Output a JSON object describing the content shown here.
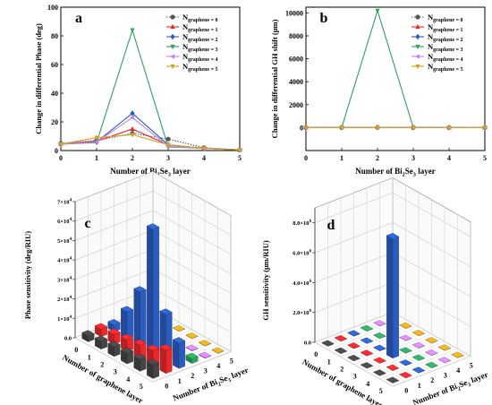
{
  "panel_letters": [
    "a",
    "b",
    "c",
    "d"
  ],
  "legend_entries": [
    "N",
    "N",
    "N",
    "N",
    "N",
    "N"
  ],
  "chart_data": [
    {
      "panel": "a",
      "type": "line",
      "xlabel_parts": [
        "Number of Bi",
        "2",
        "Se",
        "3",
        " layer"
      ],
      "ylabel": "Change in differential Phase (deg)",
      "xlim": [
        0,
        5
      ],
      "ylim": [
        0,
        100
      ],
      "xticks": [
        0,
        1,
        2,
        3,
        4,
        5
      ],
      "yticks": [
        0,
        20,
        40,
        60,
        80,
        100
      ],
      "legend": "top-right",
      "x": [
        0,
        1,
        2,
        3,
        4,
        5
      ],
      "series": [
        {
          "name": "graphene = 0",
          "color": "#555555",
          "marker": "circle",
          "dash": "dot",
          "values": [
            5,
            7,
            12,
            8,
            2,
            0.5
          ]
        },
        {
          "name": "graphene = 1",
          "color": "#e8272b",
          "marker": "triangle",
          "dash": "solid",
          "values": [
            4.5,
            6.5,
            15,
            4,
            1.5,
            0.5
          ]
        },
        {
          "name": "graphene = 2",
          "color": "#2a5cbf",
          "marker": "diamond",
          "dash": "solid",
          "values": [
            4.5,
            6,
            26,
            4,
            1.5,
            0.5
          ]
        },
        {
          "name": "graphene = 3",
          "color": "#2ca25f",
          "marker": "triangle-down",
          "dash": "solid",
          "values": [
            4.5,
            5.5,
            84,
            2.5,
            1.5,
            0.5
          ]
        },
        {
          "name": "graphene = 4",
          "color": "#c77ff0",
          "marker": "triangle-left",
          "dash": "solid",
          "values": [
            4.5,
            6,
            23,
            3,
            1.5,
            0.5
          ]
        },
        {
          "name": "graphene = 5",
          "color": "#d6a21c",
          "marker": "triangle-down",
          "dash": "solid",
          "values": [
            4.5,
            9,
            11,
            4,
            1.5,
            0.5
          ]
        }
      ]
    },
    {
      "panel": "b",
      "type": "line",
      "xlabel_parts": [
        "Number of Bi",
        "2",
        "Se",
        "3",
        " layer"
      ],
      "ylabel": "Change in differential GH shift (μm)",
      "xlim": [
        0,
        5
      ],
      "ylim": [
        -2000,
        10500
      ],
      "xticks": [
        0,
        1,
        2,
        3,
        4,
        5
      ],
      "yticks": [
        0,
        2000,
        4000,
        6000,
        8000,
        10000
      ],
      "legend": "top-right",
      "x": [
        0,
        1,
        2,
        3,
        4,
        5
      ],
      "series": [
        {
          "name": "graphene = 0",
          "color": "#555555",
          "marker": "circle",
          "dash": "dot",
          "values": [
            0,
            10,
            20,
            10,
            5,
            0
          ]
        },
        {
          "name": "graphene = 1",
          "color": "#e8272b",
          "marker": "triangle",
          "dash": "solid",
          "values": [
            0,
            5,
            15,
            5,
            2,
            0
          ]
        },
        {
          "name": "graphene = 2",
          "color": "#2a5cbf",
          "marker": "diamond",
          "dash": "solid",
          "values": [
            0,
            5,
            20,
            5,
            2,
            0
          ]
        },
        {
          "name": "graphene = 3",
          "color": "#2ca25f",
          "marker": "triangle-down",
          "dash": "solid",
          "values": [
            0,
            10,
            10200,
            10,
            2,
            0
          ]
        },
        {
          "name": "graphene = 4",
          "color": "#c77ff0",
          "marker": "triangle-left",
          "dash": "solid",
          "values": [
            0,
            5,
            20,
            5,
            2,
            0
          ]
        },
        {
          "name": "graphene = 5",
          "color": "#d6a21c",
          "marker": "triangle-down",
          "dash": "solid",
          "values": [
            0,
            5,
            15,
            5,
            2,
            0
          ]
        }
      ]
    },
    {
      "panel": "c",
      "type": "bar3d",
      "zlabel": "Phase sensitivity (deg/RIU)",
      "xlabel": "Number of graphene layer",
      "ylabel_parts": [
        "Number of Bi",
        "2",
        "Se",
        "3",
        " layer"
      ],
      "zlim": [
        0,
        70000
      ],
      "zticks": [
        0,
        10000,
        20000,
        30000,
        40000,
        50000,
        60000,
        70000
      ],
      "ztick_labels": [
        [
          "0.0",
          ""
        ],
        [
          "1×10",
          "4"
        ],
        [
          "2×10",
          "4"
        ],
        [
          "3×10",
          "4"
        ],
        [
          "4×10",
          "4"
        ],
        [
          "5×10",
          "4"
        ],
        [
          "6×10",
          "4"
        ],
        [
          "7×10",
          "4"
        ]
      ],
      "graphene_ticks": [
        0,
        1,
        2,
        3,
        4,
        5
      ],
      "bise_ticks": [
        0,
        1,
        2,
        3,
        4,
        5
      ],
      "colors": [
        "#444444",
        "#e8272b",
        "#2a5cbf",
        "#2ca25f",
        "#c77ff0",
        "#d6a21c"
      ],
      "values": [
        [
          3000,
          4000,
          3500,
          1500,
          400,
          200
        ],
        [
          4000,
          5000,
          14000,
          2000,
          400,
          200
        ],
        [
          5000,
          6000,
          28000,
          2200,
          400,
          200
        ],
        [
          5500,
          7000,
          64000,
          2000,
          400,
          200
        ],
        [
          6000,
          8000,
          24000,
          2500,
          400,
          200
        ],
        [
          7000,
          12000,
          13000,
          2500,
          400,
          200
        ]
      ]
    },
    {
      "panel": "d",
      "type": "bar3d",
      "zlabel": "GH sensitivity (μm/RIU)",
      "xlabel": "Number of graphene layer",
      "ylabel_parts": [
        "Number of Bi",
        "2",
        "Se",
        "3",
        " layer"
      ],
      "zlim": [
        0,
        9000000
      ],
      "zticks": [
        0,
        2000000,
        4000000,
        6000000,
        8000000
      ],
      "ztick_labels": [
        [
          "0.0",
          ""
        ],
        [
          "2.0×10",
          "6"
        ],
        [
          "4.0×10",
          "6"
        ],
        [
          "6.0×10",
          "6"
        ],
        [
          "8.0×10",
          "6"
        ]
      ],
      "graphene_ticks": [
        0,
        1,
        2,
        3,
        4,
        5
      ],
      "bise_ticks": [
        0,
        1,
        2,
        3,
        4,
        5
      ],
      "colors": [
        "#444444",
        "#e8272b",
        "#2a5cbf",
        "#2ca25f",
        "#c77ff0",
        "#d6a21c"
      ],
      "values": [
        [
          20000,
          20000,
          20000,
          20000,
          20000,
          20000
        ],
        [
          20000,
          20000,
          20000,
          20000,
          20000,
          20000
        ],
        [
          20000,
          20000,
          20000,
          20000,
          20000,
          20000
        ],
        [
          20000,
          20000,
          8000000,
          20000,
          20000,
          20000
        ],
        [
          20000,
          20000,
          20000,
          20000,
          20000,
          20000
        ],
        [
          20000,
          20000,
          20000,
          20000,
          20000,
          20000
        ]
      ]
    }
  ]
}
